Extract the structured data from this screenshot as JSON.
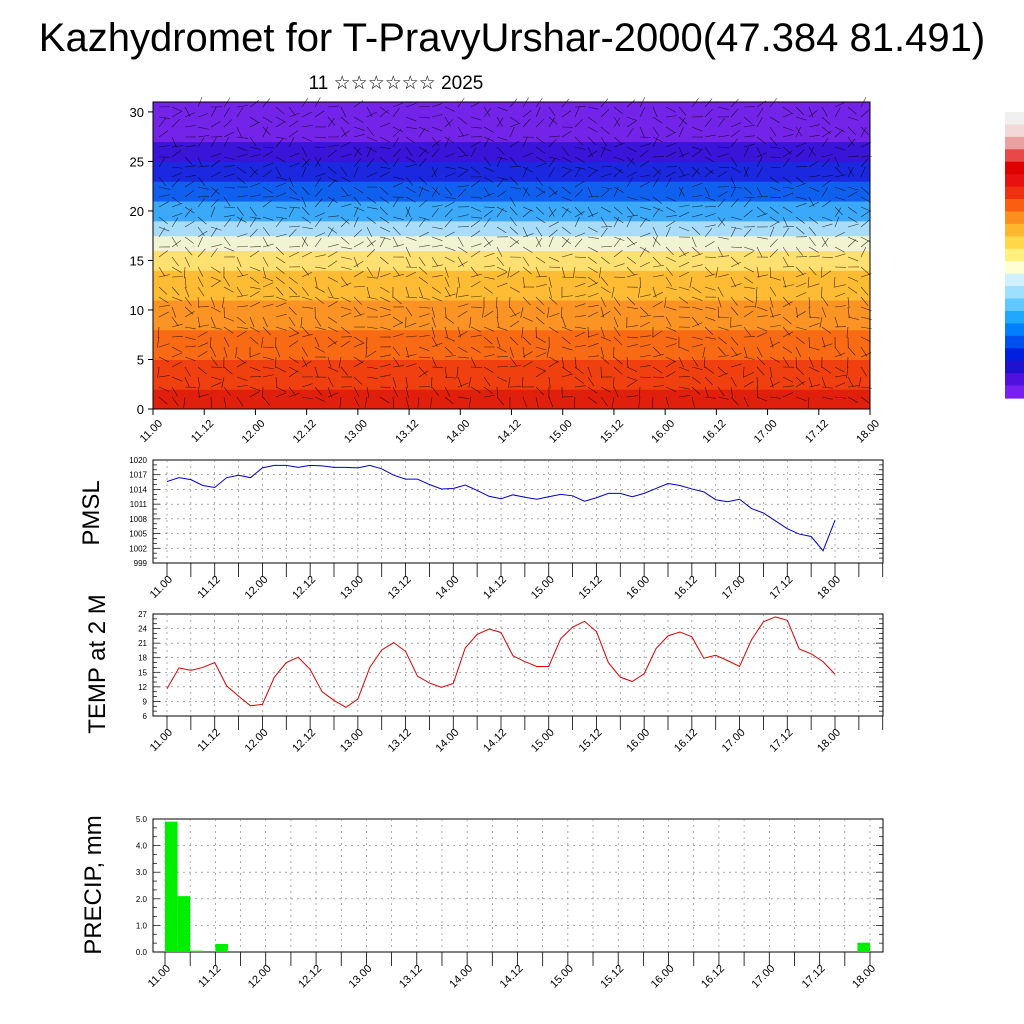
{
  "title": "Kazhydromet for T-PravyUrshar-2000(47.384 81.491)",
  "subtitle": "11 ☆☆☆☆☆☆ 2025",
  "time_ticks": [
    "11.00",
    "11.12",
    "12.00",
    "12.12",
    "13.00",
    "13.12",
    "14.00",
    "14.12",
    "15.00",
    "15.12",
    "16.00",
    "16.12",
    "17.00",
    "17.12",
    "18.00"
  ],
  "colorbar": {
    "colors": [
      "#f0f0f0",
      "#f2d8d8",
      "#e8a0a0",
      "#e84848",
      "#e00000",
      "#e81010",
      "#f03010",
      "#f86010",
      "#fb9020",
      "#fdb830",
      "#ffd84a",
      "#fff080",
      "#ffffd0",
      "#d0f0ff",
      "#a0e0ff",
      "#60c8ff",
      "#20a8ff",
      "#0080ff",
      "#0050f0",
      "#0020e0",
      "#2010d0",
      "#5010e0",
      "#7820f0"
    ]
  },
  "chart_data": [
    {
      "type": "heatmap",
      "title": "",
      "ylim": [
        0,
        31
      ],
      "yticks": [
        "0",
        "5",
        "10",
        "15",
        "20",
        "25",
        "30"
      ],
      "x": [
        "11.00",
        "11.12",
        "12.00",
        "12.12",
        "13.00",
        "13.12",
        "14.00",
        "14.12",
        "15.00",
        "15.12",
        "16.00",
        "16.12",
        "17.00",
        "17.12",
        "18.00"
      ],
      "color_bands": [
        {
          "from": 0,
          "to": 2,
          "color": "#e0200c"
        },
        {
          "from": 2,
          "to": 5,
          "color": "#f04010"
        },
        {
          "from": 5,
          "to": 8,
          "color": "#f86a14"
        },
        {
          "from": 8,
          "to": 11,
          "color": "#fb9424"
        },
        {
          "from": 11,
          "to": 14,
          "color": "#fdbc34"
        },
        {
          "from": 14,
          "to": 16,
          "color": "#ffe070"
        },
        {
          "from": 16,
          "to": 17.5,
          "color": "#f0f4d0"
        },
        {
          "from": 17.5,
          "to": 19,
          "color": "#a8dcf8"
        },
        {
          "from": 19,
          "to": 21,
          "color": "#3ca8f8"
        },
        {
          "from": 21,
          "to": 23,
          "color": "#1060f0"
        },
        {
          "from": 23,
          "to": 25,
          "color": "#1c28e0"
        },
        {
          "from": 25,
          "to": 27,
          "color": "#3a14d8"
        },
        {
          "from": 27,
          "to": 31,
          "color": "#7424e8"
        }
      ]
    },
    {
      "type": "line",
      "name": "PMSL",
      "ylabel": "PMSL",
      "ylim": [
        999,
        1020
      ],
      "yticks": [
        "999",
        "1002",
        "1005",
        "1008",
        "1011",
        "1014",
        "1017",
        "1020"
      ],
      "series_color": "#0000cc",
      "x": [
        0,
        3,
        6,
        9,
        12,
        15,
        18,
        21,
        24,
        27,
        30,
        33,
        36,
        39,
        42,
        45,
        48,
        51,
        54,
        57,
        60,
        63,
        66,
        69,
        72,
        75,
        78,
        81,
        84,
        87,
        90,
        93,
        96,
        99,
        102,
        105,
        108,
        111,
        114,
        117,
        120,
        123,
        126,
        129,
        132,
        135,
        138,
        141,
        144,
        147,
        150,
        153,
        156,
        159,
        162,
        165,
        168
      ],
      "y": [
        1015.6,
        1016.4,
        1016,
        1014.8,
        1014.4,
        1016.4,
        1016.9,
        1016.4,
        1018.4,
        1018.9,
        1018.9,
        1018.5,
        1018.9,
        1018.8,
        1018.5,
        1018.5,
        1018.4,
        1018.9,
        1018.2,
        1016.9,
        1016.1,
        1016.1,
        1015,
        1014.1,
        1014.2,
        1014.9,
        1013.8,
        1012.6,
        1012.1,
        1012.9,
        1012.4,
        1012,
        1012.5,
        1013,
        1012.7,
        1011.6,
        1012.3,
        1013.2,
        1013.2,
        1012.5,
        1013.2,
        1014.2,
        1015.2,
        1014.8,
        1014.1,
        1013.5,
        1011.9,
        1011.5,
        1012,
        1010.1,
        1009.2,
        1007.6,
        1006,
        1004.9,
        1004.4,
        1001.5,
        1007.7
      ]
    },
    {
      "type": "line",
      "name": "TEMP at 2 M",
      "ylabel": "TEMP at 2 M",
      "ylim": [
        6,
        27
      ],
      "yticks": [
        "6",
        "9",
        "12",
        "15",
        "18",
        "21",
        "24",
        "27"
      ],
      "series_color": "#dd0000",
      "x": [
        0,
        3,
        6,
        9,
        12,
        15,
        18,
        21,
        24,
        27,
        30,
        33,
        36,
        39,
        42,
        45,
        48,
        51,
        54,
        57,
        60,
        63,
        66,
        69,
        72,
        75,
        78,
        81,
        84,
        87,
        90,
        93,
        96,
        99,
        102,
        105,
        108,
        111,
        114,
        117,
        120,
        123,
        126,
        129,
        132,
        135,
        138,
        141,
        144,
        147,
        150,
        153,
        156,
        159,
        162,
        165,
        168
      ],
      "y": [
        11.6,
        15.9,
        15.4,
        16,
        17,
        12.2,
        10.1,
        8.1,
        8.4,
        14,
        17,
        18.1,
        15.6,
        11,
        9.2,
        7.8,
        9.5,
        16,
        19.6,
        21.1,
        19.3,
        14.2,
        12.8,
        11.9,
        12.7,
        20,
        22.8,
        23.9,
        23.2,
        18.4,
        17.2,
        16.2,
        16.2,
        21.9,
        24.3,
        25.5,
        23.4,
        17,
        14,
        13.1,
        14.7,
        19.9,
        22.5,
        23.3,
        22.3,
        17.9,
        18.5,
        17.4,
        16.2,
        21.7,
        25.4,
        26.4,
        25.7,
        19.8,
        18.8,
        17.2,
        14.6
      ]
    },
    {
      "type": "bar",
      "name": "PRECIP, mm",
      "ylabel": "PRECIP, mm",
      "ylim": [
        0,
        5
      ],
      "yticks": [
        "0.0",
        "1.0",
        "2.0",
        "3.0",
        "4.0",
        "5.0"
      ],
      "series_color": "#00ee00",
      "x": [
        3,
        6,
        9,
        15,
        168
      ],
      "values": [
        4.9,
        2.1,
        0.05,
        0.3,
        0.35
      ]
    }
  ]
}
